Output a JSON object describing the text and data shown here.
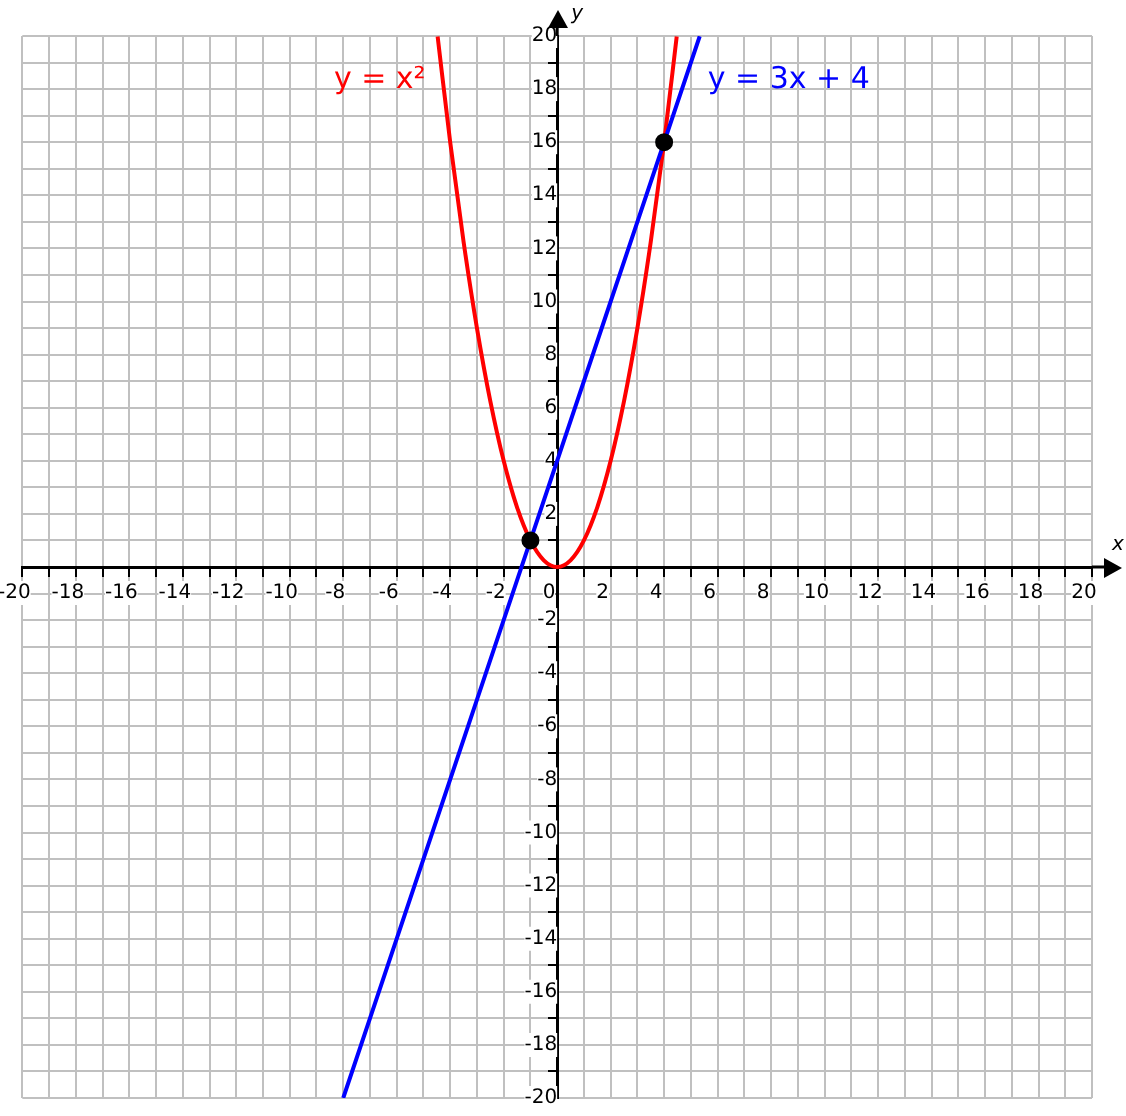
{
  "chart_data": {
    "type": "line",
    "xlabel": "x",
    "ylabel": "y",
    "xlim": [
      -20,
      20
    ],
    "ylim": [
      -20,
      20
    ],
    "xticks": [
      -20,
      {
        "value": -19,
        "label": null
      },
      -18,
      {
        "value": -17,
        "label": null
      },
      -16,
      {
        "value": -15,
        "label": null
      },
      -14,
      {
        "value": -13,
        "label": null
      },
      -12,
      {
        "value": -11,
        "label": null
      },
      -10,
      {
        "value": -9,
        "label": null
      },
      -8,
      {
        "value": -7,
        "label": null
      },
      -6,
      {
        "value": -5,
        "label": null
      },
      -4,
      {
        "value": -3,
        "label": null
      },
      -2,
      {
        "value": -1,
        "label": null
      },
      0,
      {
        "value": 1,
        "label": null
      },
      2,
      {
        "value": 3,
        "label": null
      },
      4,
      {
        "value": 5,
        "label": null
      },
      6,
      {
        "value": 7,
        "label": null
      },
      8,
      {
        "value": 9,
        "label": null
      },
      10,
      {
        "value": 11,
        "label": null
      },
      12,
      {
        "value": 13,
        "label": null
      },
      14,
      {
        "value": 15,
        "label": null
      },
      16,
      {
        "value": 17,
        "label": null
      },
      18,
      {
        "value": 19,
        "label": null
      },
      20
    ],
    "yticks": [
      -20,
      {
        "value": -19,
        "label": null
      },
      -18,
      {
        "value": -17,
        "label": null
      },
      -16,
      {
        "value": -15,
        "label": null
      },
      -14,
      {
        "value": -13,
        "label": null
      },
      -12,
      {
        "value": -11,
        "label": null
      },
      -10,
      {
        "value": -9,
        "label": null
      },
      -8,
      {
        "value": -7,
        "label": null
      },
      -6,
      {
        "value": -5,
        "label": null
      },
      -4,
      {
        "value": -3,
        "label": null
      },
      -2,
      {
        "value": -1,
        "label": null
      },
      {
        "value": 0,
        "label": null
      },
      {
        "value": 1,
        "label": null
      },
      2,
      {
        "value": 3,
        "label": null
      },
      4,
      {
        "value": 5,
        "label": null
      },
      6,
      {
        "value": 7,
        "label": null
      },
      8,
      {
        "value": 9,
        "label": null
      },
      10,
      {
        "value": 11,
        "label": null
      },
      12,
      {
        "value": 13,
        "label": null
      },
      14,
      {
        "value": 15,
        "label": null
      },
      16,
      {
        "value": 17,
        "label": null
      },
      18,
      {
        "value": 19,
        "label": null
      },
      20
    ],
    "grid": true,
    "legend": false,
    "marker": "none",
    "line_style": "solid",
    "series": [
      {
        "name": "y = x²",
        "color": "#ff0000",
        "x": [
          -4.47,
          -4,
          -3.5,
          -3,
          -2.5,
          -2,
          -1.5,
          -1,
          -0.5,
          0,
          0.5,
          1,
          1.5,
          2,
          2.5,
          3,
          3.5,
          4,
          4.47
        ],
        "values": [
          19.98,
          16,
          12.25,
          9,
          6.25,
          4,
          2.25,
          1,
          0.25,
          0,
          0.25,
          1,
          2.25,
          4,
          6.25,
          9,
          12.25,
          16,
          19.98
        ]
      },
      {
        "name": "y = 3x + 4",
        "color": "#0000ff",
        "x": [
          -8,
          5.33
        ],
        "values": [
          -20,
          19.99
        ]
      },
      {
        "type": "scatter",
        "color": "#000000",
        "marker": "circle",
        "x": [
          -1,
          4
        ],
        "values": [
          1,
          16
        ]
      }
    ]
  }
}
